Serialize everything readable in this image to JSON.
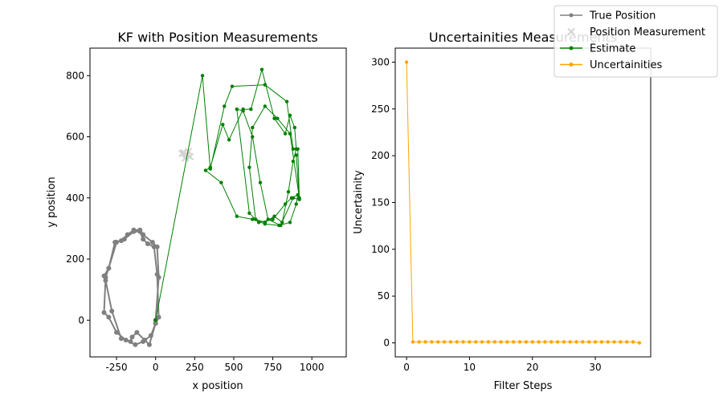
{
  "legend": {
    "placement": "top-right",
    "entries": [
      {
        "label": "True Position",
        "color": "#808080",
        "marker": "dot-line"
      },
      {
        "label": "Position Measurement",
        "color": "#d3d3d3",
        "marker": "x"
      },
      {
        "label": "Estimate",
        "color": "#008000",
        "marker": "dot-line"
      },
      {
        "label": "Uncertainities",
        "color": "#ffa500",
        "marker": "dot-line"
      }
    ]
  },
  "chart_data": [
    {
      "type": "line",
      "title": "KF with Position Measurements",
      "xlabel": "x position",
      "ylabel": "y position",
      "xlim": [
        -420,
        1220
      ],
      "ylim": [
        -120,
        890
      ],
      "xticks": [
        -250,
        0,
        250,
        500,
        750,
        1000
      ],
      "yticks": [
        0,
        200,
        400,
        600,
        800
      ],
      "grid": false,
      "series": [
        {
          "name": "True Position",
          "color": "#808080",
          "style": "line-dots-thick",
          "x": [
            0,
            20,
            10,
            -20,
            -80,
            -100,
            -140,
            -180,
            -220,
            -260,
            -300,
            -330,
            -320,
            -280,
            -220,
            -160,
            -150,
            -120,
            -70,
            -40,
            0,
            20,
            10,
            -10,
            -50,
            -80,
            -100,
            -140,
            -200,
            -250,
            -300,
            -320,
            -330,
            -300,
            -250,
            -190,
            -130,
            -80,
            -30,
            0
          ],
          "y": [
            0,
            140,
            240,
            255,
            280,
            295,
            295,
            280,
            260,
            255,
            170,
            145,
            130,
            30,
            -60,
            -70,
            -55,
            -40,
            -65,
            -80,
            -10,
            10,
            150,
            240,
            250,
            265,
            290,
            290,
            265,
            255,
            170,
            140,
            25,
            10,
            -40,
            -65,
            -80,
            -70,
            -50,
            -10
          ],
          "closed": false
        },
        {
          "name": "Position Measurement",
          "color": "#d3d3d3",
          "marker": "x",
          "x": [
            180,
            200,
            210,
            190,
            170,
            220
          ],
          "y": [
            548,
            540,
            552,
            530,
            545,
            535
          ]
        },
        {
          "name": "Estimate",
          "color": "#008000",
          "x": [
            0,
            300,
            350,
            440,
            490,
            700,
            840,
            880,
            910,
            920,
            860,
            780,
            700,
            620,
            600,
            640,
            700,
            760,
            810,
            850,
            880,
            900,
            890,
            860,
            830,
            760,
            680,
            610,
            560,
            470,
            430,
            350,
            320,
            420,
            520,
            620,
            700,
            790,
            860,
            900,
            910,
            870,
            830,
            750,
            660,
            600,
            520,
            560,
            620,
            670,
            720,
            800,
            880,
            920,
            900
          ],
          "y": [
            0,
            800,
            495,
            700,
            765,
            770,
            715,
            560,
            560,
            400,
            610,
            660,
            700,
            630,
            500,
            330,
            320,
            340,
            320,
            420,
            520,
            560,
            630,
            670,
            610,
            660,
            820,
            690,
            690,
            590,
            640,
            500,
            490,
            450,
            340,
            330,
            315,
            310,
            320,
            380,
            410,
            400,
            380,
            330,
            320,
            350,
            690,
            685,
            600,
            450,
            330,
            310,
            400,
            395,
            540
          ],
          "markers": true
        }
      ]
    },
    {
      "type": "line",
      "title": "Uncertainities Measurements",
      "xlabel": "Filter Steps",
      "ylabel": "Uncertainity",
      "xlim": [
        -1.8,
        38.8
      ],
      "ylim": [
        -15,
        315
      ],
      "xticks": [
        0,
        10,
        20,
        30
      ],
      "yticks": [
        0,
        50,
        100,
        150,
        200,
        250,
        300
      ],
      "grid": false,
      "series": [
        {
          "name": "Uncertainities",
          "color": "#ffa500",
          "x": [
            0,
            1,
            2,
            3,
            4,
            5,
            6,
            7,
            8,
            9,
            10,
            11,
            12,
            13,
            14,
            15,
            16,
            17,
            18,
            19,
            20,
            21,
            22,
            23,
            24,
            25,
            26,
            27,
            28,
            29,
            30,
            31,
            32,
            33,
            34,
            35,
            36,
            37
          ],
          "y": [
            300,
            1,
            1,
            1,
            1,
            1,
            1,
            1,
            1,
            1,
            1,
            1,
            1,
            1,
            1,
            1,
            1,
            1,
            1,
            1,
            1,
            1,
            1,
            1,
            1,
            1,
            1,
            1,
            1,
            1,
            1,
            1,
            1,
            1,
            1,
            1,
            1,
            0
          ]
        }
      ]
    }
  ]
}
